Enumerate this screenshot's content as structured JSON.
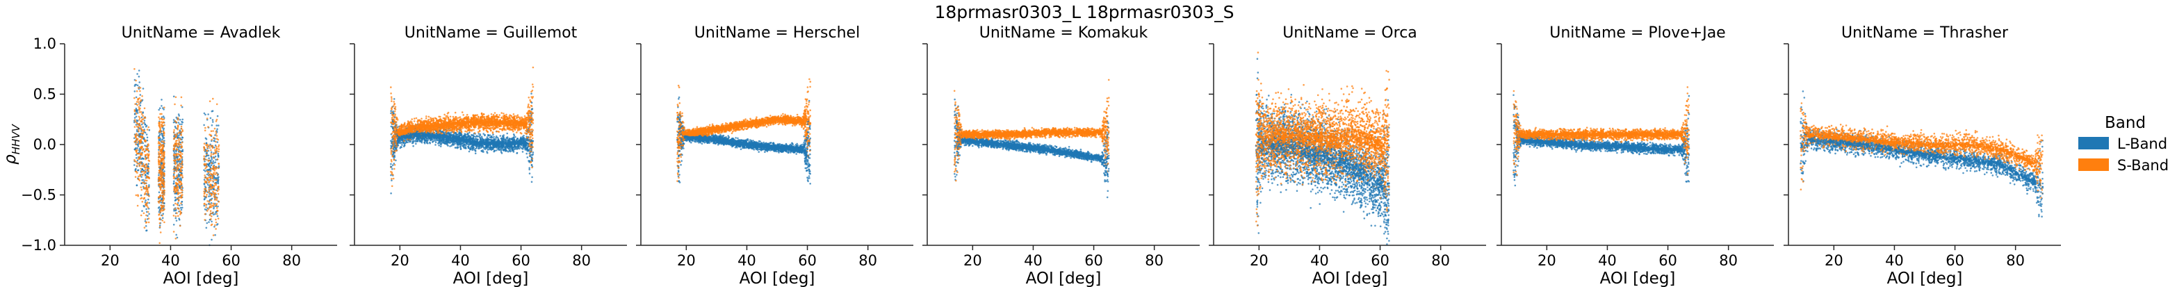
{
  "figure": {
    "suptitle": "18prmasr0303_L 18prmasr0303_S"
  },
  "legend": {
    "title": "Band",
    "items": [
      {
        "label": "L-Band",
        "color": "#1f77b4"
      },
      {
        "label": "S-Band",
        "color": "#ff7f0e"
      }
    ]
  },
  "chart_data": {
    "type": "scatter",
    "layout": "facet-row",
    "facet_variable": "UnitName",
    "xlabel": "AOI [deg]",
    "ylabel": "ρHHVV",
    "ylabel_main": "ρ",
    "ylabel_sub": "HHVV",
    "xlim": [
      5,
      95
    ],
    "ylim": [
      -1.0,
      1.0
    ],
    "xticks": [
      20,
      40,
      60,
      80
    ],
    "yticks": [
      -1.0,
      -0.5,
      0.0,
      0.5,
      1.0
    ],
    "ytick_labels": [
      "−1.0",
      "−0.5",
      "0.0",
      "0.5",
      "1.0"
    ],
    "grid": false,
    "legend_placement": "right",
    "series_colors": {
      "L-Band": "#1f77b4",
      "S-Band": "#ff7f0e"
    },
    "panels": [
      {
        "title": "UnitName = Avadlek",
        "pattern": "strips",
        "strips": [
          [
            28,
            33
          ],
          [
            36,
            38
          ],
          [
            41,
            44
          ],
          [
            51,
            56
          ]
        ],
        "S": [
          [
            30,
            0.1
          ],
          [
            32,
            -0.3
          ],
          [
            42,
            -0.2
          ],
          [
            53,
            -0.3
          ]
        ],
        "L": [
          [
            30,
            0.1
          ],
          [
            32,
            -0.3
          ],
          [
            42,
            -0.2
          ],
          [
            53,
            -0.3
          ]
        ],
        "noise": 0.55
      },
      {
        "title": "UnitName = Guillemot",
        "pattern": "trend",
        "xrange": [
          17,
          64
        ],
        "S": [
          [
            18,
            0.1
          ],
          [
            25,
            0.17
          ],
          [
            35,
            0.2
          ],
          [
            45,
            0.22
          ],
          [
            55,
            0.22
          ],
          [
            62,
            0.2
          ]
        ],
        "L": [
          [
            18,
            0.05
          ],
          [
            25,
            0.1
          ],
          [
            35,
            0.08
          ],
          [
            45,
            0.02
          ],
          [
            55,
            0.0
          ],
          [
            62,
            0.02
          ]
        ],
        "noise": 0.08
      },
      {
        "title": "UnitName = Herschel",
        "pattern": "trend",
        "xrange": [
          17,
          61
        ],
        "S": [
          [
            18,
            0.1
          ],
          [
            30,
            0.15
          ],
          [
            40,
            0.2
          ],
          [
            50,
            0.25
          ],
          [
            60,
            0.23
          ]
        ],
        "L": [
          [
            18,
            0.08
          ],
          [
            30,
            0.05
          ],
          [
            40,
            0.0
          ],
          [
            50,
            -0.03
          ],
          [
            60,
            -0.05
          ]
        ],
        "noise": 0.04
      },
      {
        "title": "UnitName = Komakuk",
        "pattern": "trend",
        "xrange": [
          14,
          65
        ],
        "S": [
          [
            15,
            0.1
          ],
          [
            30,
            0.1
          ],
          [
            45,
            0.12
          ],
          [
            55,
            0.12
          ],
          [
            64,
            0.12
          ]
        ],
        "L": [
          [
            15,
            0.05
          ],
          [
            30,
            0.0
          ],
          [
            45,
            -0.05
          ],
          [
            55,
            -0.1
          ],
          [
            64,
            -0.15
          ]
        ],
        "noise": 0.04
      },
      {
        "title": "UnitName = Orca",
        "pattern": "noisy",
        "xrange": [
          19,
          63
        ],
        "S": [
          [
            20,
            0.05
          ],
          [
            30,
            0.08
          ],
          [
            40,
            0.05
          ],
          [
            50,
            0.08
          ],
          [
            60,
            0.0
          ]
        ],
        "L": [
          [
            20,
            0.0
          ],
          [
            30,
            0.0
          ],
          [
            40,
            -0.1
          ],
          [
            50,
            -0.2
          ],
          [
            60,
            -0.4
          ]
        ],
        "noise": 0.35
      },
      {
        "title": "UnitName = Plove+Jae",
        "pattern": "trend",
        "xrange": [
          9,
          67
        ],
        "S": [
          [
            10,
            0.1
          ],
          [
            30,
            0.1
          ],
          [
            45,
            0.1
          ],
          [
            60,
            0.1
          ],
          [
            66,
            0.1
          ]
        ],
        "L": [
          [
            10,
            0.05
          ],
          [
            30,
            0.0
          ],
          [
            45,
            -0.02
          ],
          [
            60,
            -0.05
          ],
          [
            66,
            -0.05
          ]
        ],
        "noise": 0.05
      },
      {
        "title": "UnitName = Thrasher",
        "pattern": "trend",
        "xrange": [
          9,
          89
        ],
        "S": [
          [
            10,
            0.1
          ],
          [
            30,
            0.05
          ],
          [
            50,
            0.0
          ],
          [
            65,
            0.0
          ],
          [
            75,
            -0.05
          ],
          [
            88,
            -0.2
          ]
        ],
        "L": [
          [
            10,
            0.05
          ],
          [
            30,
            0.0
          ],
          [
            50,
            -0.1
          ],
          [
            65,
            -0.15
          ],
          [
            75,
            -0.2
          ],
          [
            88,
            -0.4
          ]
        ],
        "noise": 0.1
      }
    ]
  }
}
